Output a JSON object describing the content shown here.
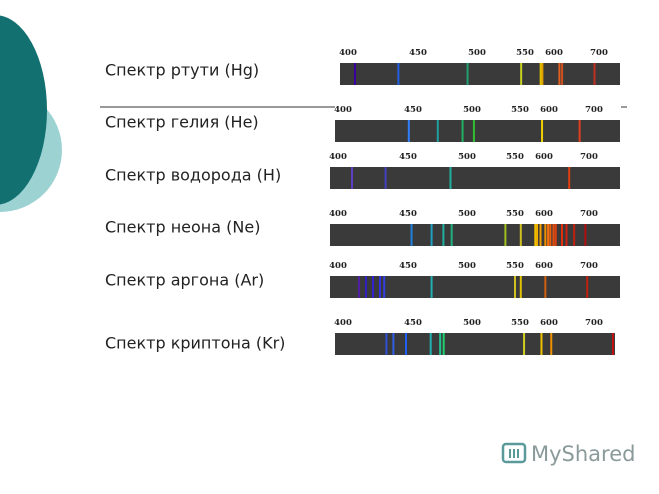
{
  "spectra": [
    {
      "label": "Спектр ртути (Hg)",
      "ticks": [
        400,
        450,
        500,
        550,
        600,
        700
      ],
      "lines": [
        {
          "wavelength": 405,
          "color": "#3a00a0"
        },
        {
          "wavelength": 436,
          "color": "#2060e0"
        },
        {
          "wavelength": 492,
          "color": "#20a070"
        },
        {
          "wavelength": 546,
          "color": "#c8d020"
        },
        {
          "wavelength": 577,
          "color": "#e0c000"
        },
        {
          "wavelength": 580,
          "color": "#e0a000"
        },
        {
          "wavelength": 612,
          "color": "#e06020"
        },
        {
          "wavelength": 618,
          "color": "#d05020"
        },
        {
          "wavelength": 690,
          "color": "#c03020"
        }
      ]
    },
    {
      "label": "Спектр гелия (He)",
      "ticks": [
        400,
        450,
        500,
        550,
        600,
        700
      ],
      "lines": [
        {
          "wavelength": 447,
          "color": "#3080ff"
        },
        {
          "wavelength": 471,
          "color": "#20a0a0"
        },
        {
          "wavelength": 492,
          "color": "#20b060"
        },
        {
          "wavelength": 502,
          "color": "#30c030"
        },
        {
          "wavelength": 588,
          "color": "#f0d000"
        },
        {
          "wavelength": 668,
          "color": "#e04020"
        }
      ]
    },
    {
      "label": "Спектр водорода (H)",
      "ticks": [
        400,
        450,
        500,
        550,
        600,
        700
      ],
      "lines": [
        {
          "wavelength": 410,
          "color": "#6040c0"
        },
        {
          "wavelength": 434,
          "color": "#4040c0"
        },
        {
          "wavelength": 486,
          "color": "#20b0a0"
        },
        {
          "wavelength": 656,
          "color": "#e04010"
        }
      ]
    },
    {
      "label": "Спектр неона (Ne)",
      "ticks": [
        400,
        450,
        500,
        550,
        600,
        700
      ],
      "lines": [
        {
          "wavelength": 453,
          "color": "#2080e0"
        },
        {
          "wavelength": 470,
          "color": "#20a0c0"
        },
        {
          "wavelength": 480,
          "color": "#20b0a0"
        },
        {
          "wavelength": 487,
          "color": "#20b080"
        },
        {
          "wavelength": 540,
          "color": "#a0c020"
        },
        {
          "wavelength": 560,
          "color": "#d0c020"
        },
        {
          "wavelength": 585,
          "color": "#f0c000"
        },
        {
          "wavelength": 588,
          "color": "#f0b000"
        },
        {
          "wavelength": 594,
          "color": "#f0a000"
        },
        {
          "wavelength": 603,
          "color": "#f09000"
        },
        {
          "wavelength": 609,
          "color": "#f07010"
        },
        {
          "wavelength": 614,
          "color": "#f06010"
        },
        {
          "wavelength": 621,
          "color": "#e05010"
        },
        {
          "wavelength": 626,
          "color": "#e04010"
        },
        {
          "wavelength": 640,
          "color": "#e03010"
        },
        {
          "wavelength": 650,
          "color": "#d02010"
        },
        {
          "wavelength": 667,
          "color": "#c02010"
        },
        {
          "wavelength": 692,
          "color": "#b01010"
        }
      ]
    },
    {
      "label": "Спектр аргона (Ar)",
      "ticks": [
        400,
        450,
        500,
        550,
        600,
        700
      ],
      "lines": [
        {
          "wavelength": 415,
          "color": "#5020a0"
        },
        {
          "wavelength": 420,
          "color": "#3020c0"
        },
        {
          "wavelength": 425,
          "color": "#3020d0"
        },
        {
          "wavelength": 430,
          "color": "#3030e0"
        },
        {
          "wavelength": 433,
          "color": "#3040e0"
        },
        {
          "wavelength": 470,
          "color": "#20b0b0"
        },
        {
          "wavelength": 550,
          "color": "#d0c020"
        },
        {
          "wavelength": 560,
          "color": "#e0c000"
        },
        {
          "wavelength": 603,
          "color": "#d06010"
        },
        {
          "wavelength": 696,
          "color": "#c02010"
        }
      ]
    },
    {
      "label": "Спектр криптона (Kr)",
      "ticks": [
        400,
        450,
        500,
        550,
        600,
        700
      ],
      "lines": [
        {
          "wavelength": 431,
          "color": "#3050d0"
        },
        {
          "wavelength": 436,
          "color": "#3060e0"
        },
        {
          "wavelength": 445,
          "color": "#2060f0"
        },
        {
          "wavelength": 465,
          "color": "#20b0b0"
        },
        {
          "wavelength": 473,
          "color": "#20c090"
        },
        {
          "wavelength": 476,
          "color": "#20d070"
        },
        {
          "wavelength": 557,
          "color": "#d0d020"
        },
        {
          "wavelength": 587,
          "color": "#f0c000"
        },
        {
          "wavelength": 605,
          "color": "#f09000"
        },
        {
          "wavelength": 760,
          "color": "#c01010"
        }
      ]
    }
  ],
  "logo": "MyShared"
}
